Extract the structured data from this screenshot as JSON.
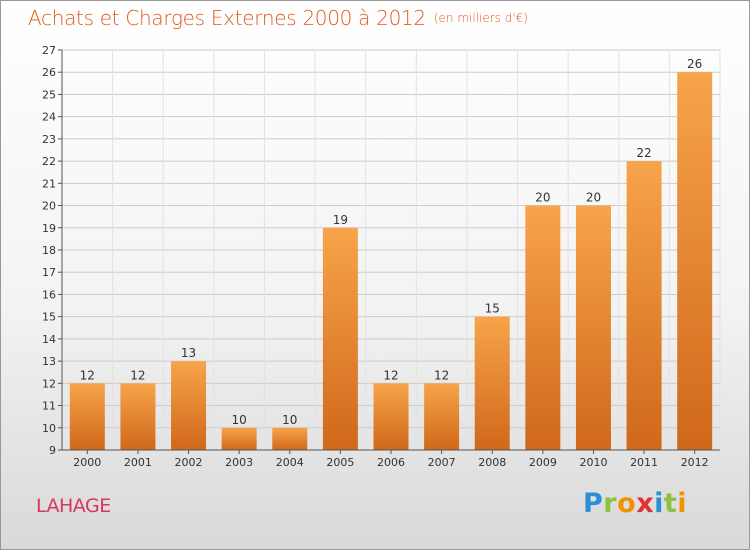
{
  "title": "Achats et Charges Externes 2000 à 2012",
  "unit_note": "(en milliers d'€)",
  "commune": "LAHAGE",
  "logo": {
    "letters": [
      "P",
      "r",
      "o",
      "x",
      "i",
      "t",
      "i"
    ],
    "colors": [
      "#2a8fd6",
      "#8ac43f",
      "#f39200",
      "#e5302d",
      "#2a8fd6",
      "#8ac43f",
      "#f39200"
    ]
  },
  "colors": {
    "title": "#e05a1e",
    "commune": "#d9365a",
    "bar_top": "#f7a44a",
    "bar_bottom": "#d0681a",
    "grid": "#cccccc"
  },
  "chart_data": {
    "type": "bar",
    "categories": [
      "2000",
      "2001",
      "2002",
      "2003",
      "2004",
      "2005",
      "2006",
      "2007",
      "2008",
      "2009",
      "2010",
      "2011",
      "2012"
    ],
    "values": [
      12,
      12,
      13,
      10,
      10,
      19,
      12,
      12,
      15,
      20,
      20,
      22,
      26
    ],
    "ylim": [
      9,
      27
    ],
    "yticks": [
      9,
      10,
      11,
      12,
      13,
      14,
      15,
      16,
      17,
      18,
      19,
      20,
      21,
      22,
      23,
      24,
      25,
      26,
      27
    ],
    "grid": true,
    "data_labels": true
  }
}
